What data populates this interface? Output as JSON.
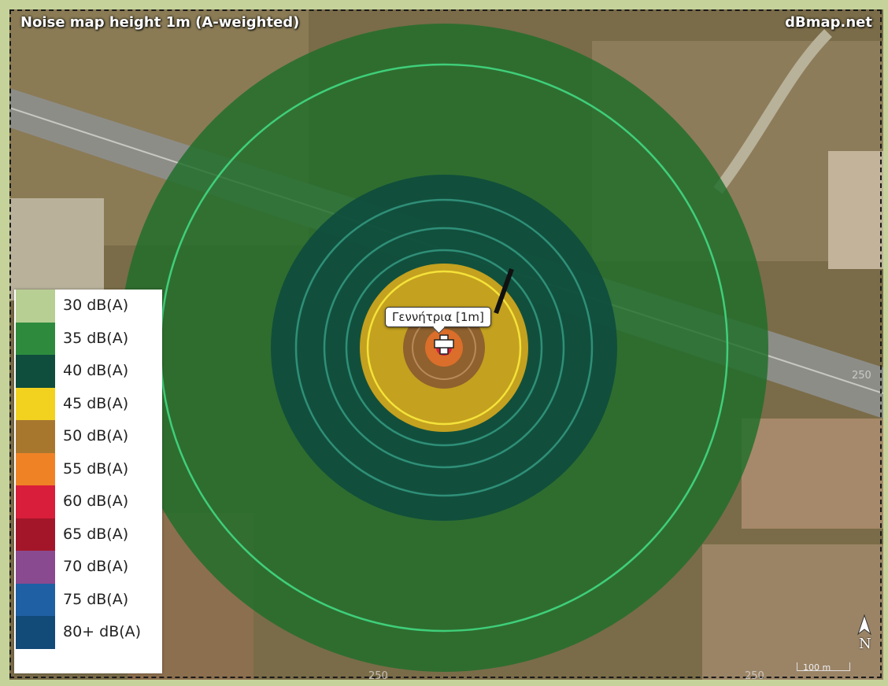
{
  "map": {
    "title": "Noise map height 1m (A-weighted)",
    "attribution": "dBmap.net",
    "source_label": "Γεννήτρια [1m]",
    "north_label": "N",
    "scale_label": "100 m",
    "grid_labels": [
      "250",
      "250",
      "250"
    ]
  },
  "legend": {
    "items": [
      {
        "label": "30 dB(A)",
        "color": "#b7cf93"
      },
      {
        "label": "35 dB(A)",
        "color": "#2e8b3e"
      },
      {
        "label": "40 dB(A)",
        "color": "#0f4d3d"
      },
      {
        "label": "45 dB(A)",
        "color": "#f2d21f"
      },
      {
        "label": "50 dB(A)",
        "color": "#a8772e"
      },
      {
        "label": "55 dB(A)",
        "color": "#f08226"
      },
      {
        "label": "60 dB(A)",
        "color": "#d81e3a"
      },
      {
        "label": "65 dB(A)",
        "color": "#a3162a"
      },
      {
        "label": "70 dB(A)",
        "color": "#8a4a8f"
      },
      {
        "label": "75 dB(A)",
        "color": "#1f5fa3"
      },
      {
        "label": "80+ dB(A)",
        "color": "#124a78"
      }
    ]
  }
}
